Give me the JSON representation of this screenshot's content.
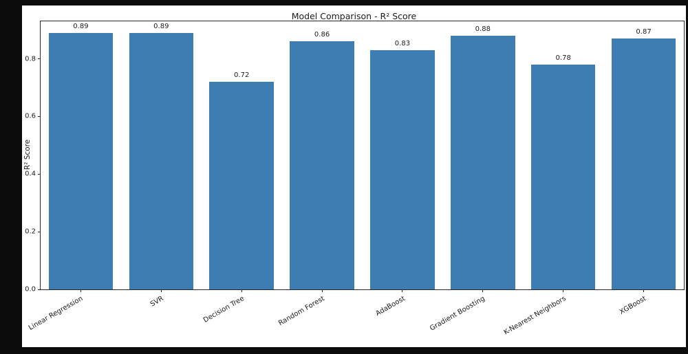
{
  "window": {
    "background": "#0c0c0c",
    "figure_background": "#ffffff"
  },
  "chart_data": {
    "type": "bar",
    "title": "Model Comparison - R² Score",
    "ylabel": "R² Score",
    "xlabel": "",
    "categories": [
      "Linear Regression",
      "SVR",
      "Decision Tree",
      "Random Forest",
      "AdaBoost",
      "Gradient Boosting",
      "K-Nearest Neighbors",
      "XGBoost"
    ],
    "values": [
      0.89,
      0.89,
      0.72,
      0.86,
      0.83,
      0.88,
      0.78,
      0.87
    ],
    "bar_labels": [
      "0.89",
      "0.89",
      "0.72",
      "0.86",
      "0.83",
      "0.88",
      "0.78",
      "0.87"
    ],
    "ytick_labels": [
      "0.0",
      "0.2",
      "0.4",
      "0.6",
      "0.8"
    ],
    "ytick_values": [
      0,
      0.2,
      0.4,
      0.6,
      0.8
    ],
    "ylim": [
      0,
      0.93
    ],
    "grid": false,
    "legend_position": "none",
    "bar_color": "#3e7db2",
    "text_color": "#1a1a1a",
    "spine_color": "#262626"
  }
}
